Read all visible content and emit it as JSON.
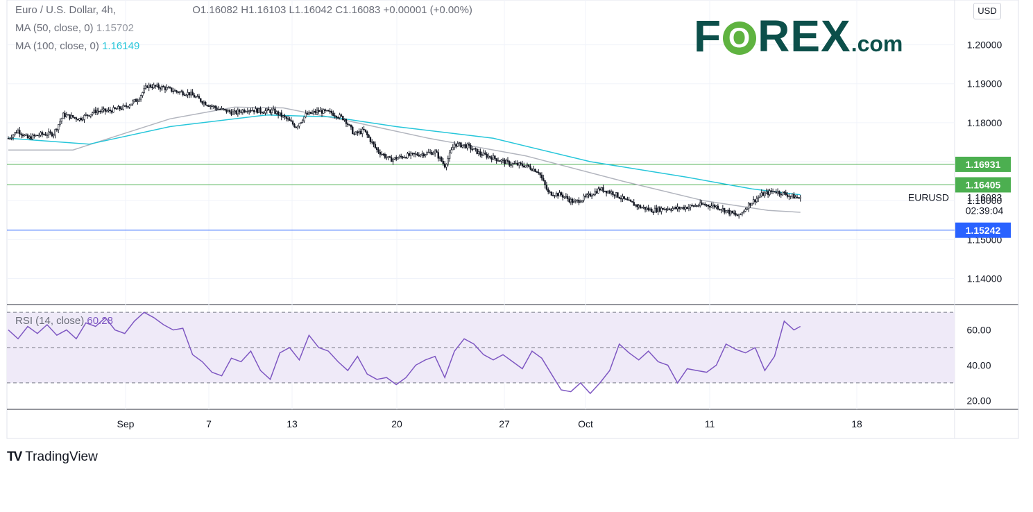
{
  "header": {
    "symbol_line": "Euro / U.S. Dollar, 4h,",
    "ohlc": "O1.16082  H1.16103  L1.16042  C1.16083  +0.00001 (+0.00%)",
    "ma50_label": "MA (50, close, 0)",
    "ma50_value": "1.15702",
    "ma100_label": "MA (100, close, 0)",
    "ma100_value": "1.16149",
    "rsi_label": "RSI (14, close)",
    "rsi_value": "60.28"
  },
  "currency_button": "USD",
  "logo": {
    "part1": "F",
    "o": "O",
    "part2": "REX",
    "suffix": ".com"
  },
  "branding": "TradingView",
  "colors": {
    "ma50": "#b2b5be",
    "ma100": "#26c6da",
    "resistance": "#4caf50",
    "support": "#2962ff",
    "rsi_line": "#7e57c2",
    "rsi_band": "#efeaf8",
    "candle": "#131722"
  },
  "chart_data": [
    {
      "type": "candlestick",
      "title": "Euro / U.S. Dollar, 4h",
      "symbol": "EURUSD",
      "price_scale": [
        "1.14000",
        "1.15000",
        "1.16000",
        "1.17000",
        "1.18000",
        "1.19000",
        "1.20000"
      ],
      "ylim": [
        1.1335,
        1.2115
      ],
      "x_tick_labels": [
        "Sep",
        "7",
        "13",
        "20",
        "27",
        "Oct",
        "11",
        "18"
      ],
      "last_price": "1.16083",
      "countdown": "02:39:04",
      "horizontal_lines": [
        {
          "label": "1.16931",
          "value": 1.16931,
          "color": "#4caf50"
        },
        {
          "label": "1.16405",
          "value": 1.16405,
          "color": "#4caf50"
        },
        {
          "label": "1.15242",
          "value": 1.15242,
          "color": "#2962ff"
        }
      ],
      "close_path": [
        [
          0,
          1.176
        ],
        [
          6,
          1.178
        ],
        [
          12,
          1.176
        ],
        [
          20,
          1.177
        ],
        [
          28,
          1.1772
        ],
        [
          34,
          1.182
        ],
        [
          44,
          1.181
        ],
        [
          54,
          1.183
        ],
        [
          62,
          1.183
        ],
        [
          72,
          1.184
        ],
        [
          80,
          1.186
        ],
        [
          86,
          1.1895
        ],
        [
          96,
          1.189
        ],
        [
          104,
          1.188
        ],
        [
          112,
          1.1875
        ],
        [
          122,
          1.185
        ],
        [
          130,
          1.1835
        ],
        [
          140,
          1.1825
        ],
        [
          148,
          1.1835
        ],
        [
          156,
          1.183
        ],
        [
          164,
          1.183
        ],
        [
          172,
          1.181
        ],
        [
          178,
          1.179
        ],
        [
          184,
          1.182
        ],
        [
          192,
          1.183
        ],
        [
          200,
          1.1825
        ],
        [
          208,
          1.181
        ],
        [
          214,
          1.177
        ],
        [
          220,
          1.178
        ],
        [
          228,
          1.173
        ],
        [
          236,
          1.1705
        ],
        [
          246,
          1.1715
        ],
        [
          256,
          1.172
        ],
        [
          264,
          1.1725
        ],
        [
          270,
          1.169
        ],
        [
          276,
          1.1745
        ],
        [
          284,
          1.174
        ],
        [
          292,
          1.172
        ],
        [
          300,
          1.171
        ],
        [
          310,
          1.1695
        ],
        [
          320,
          1.169
        ],
        [
          328,
          1.1675
        ],
        [
          334,
          1.162
        ],
        [
          342,
          1.1615
        ],
        [
          350,
          1.1595
        ],
        [
          358,
          1.161
        ],
        [
          366,
          1.163
        ],
        [
          374,
          1.162
        ],
        [
          382,
          1.16
        ],
        [
          390,
          1.1585
        ],
        [
          398,
          1.1575
        ],
        [
          406,
          1.158
        ],
        [
          414,
          1.158
        ],
        [
          422,
          1.1585
        ],
        [
          430,
          1.159
        ],
        [
          438,
          1.1585
        ],
        [
          446,
          1.157
        ],
        [
          452,
          1.156
        ],
        [
          458,
          1.159
        ],
        [
          466,
          1.1615
        ],
        [
          474,
          1.1625
        ],
        [
          482,
          1.1615
        ],
        [
          490,
          1.1605
        ]
      ],
      "ma50_path": [
        [
          0,
          1.173
        ],
        [
          40,
          1.173
        ],
        [
          70,
          1.177
        ],
        [
          100,
          1.181
        ],
        [
          140,
          1.184
        ],
        [
          170,
          1.1838
        ],
        [
          210,
          1.1805
        ],
        [
          260,
          1.176
        ],
        [
          320,
          1.1715
        ],
        [
          380,
          1.165
        ],
        [
          430,
          1.16
        ],
        [
          470,
          1.1575
        ],
        [
          490,
          1.157
        ]
      ],
      "ma100_path": [
        [
          0,
          1.176
        ],
        [
          50,
          1.1745
        ],
        [
          100,
          1.179
        ],
        [
          160,
          1.182
        ],
        [
          200,
          1.1815
        ],
        [
          240,
          1.179
        ],
        [
          300,
          1.176
        ],
        [
          360,
          1.17
        ],
        [
          420,
          1.166
        ],
        [
          460,
          1.163
        ],
        [
          490,
          1.1615
        ]
      ]
    },
    {
      "type": "line",
      "title": "RSI (14, close)",
      "y_tick_labels": [
        "20.00",
        "40.00",
        "60.00"
      ],
      "ylim": [
        15,
        74
      ],
      "bands": [
        30,
        50,
        70
      ],
      "series": [
        {
          "name": "RSI (14, close)",
          "x": [
            0,
            6,
            12,
            18,
            24,
            30,
            36,
            42,
            48,
            54,
            60,
            66,
            72,
            78,
            84,
            90,
            96,
            102,
            108,
            114,
            120,
            126,
            132,
            138,
            144,
            150,
            156,
            162,
            168,
            174,
            180,
            186,
            192,
            198,
            204,
            210,
            216,
            222,
            228,
            234,
            240,
            246,
            252,
            258,
            264,
            270,
            276,
            282,
            288,
            294,
            300,
            306,
            312,
            318,
            324,
            330,
            336,
            342,
            348,
            354,
            360,
            366,
            372,
            378,
            384,
            390,
            396,
            402,
            408,
            414,
            420,
            426,
            432,
            438,
            444,
            450,
            456,
            462,
            468,
            474,
            480,
            486,
            490
          ],
          "values": [
            60,
            55,
            62,
            58,
            63,
            57,
            60,
            55,
            64,
            62,
            67,
            60,
            58,
            65,
            70,
            67,
            63,
            60,
            61,
            46,
            42,
            36,
            34,
            44,
            42,
            48,
            37,
            32,
            47,
            50,
            43,
            57,
            50,
            48,
            42,
            37,
            45,
            35,
            32,
            33,
            29,
            33,
            40,
            43,
            45,
            33,
            48,
            55,
            52,
            46,
            43,
            46,
            42,
            38,
            48,
            44,
            35,
            26,
            25,
            30,
            24,
            30,
            37,
            52,
            47,
            43,
            48,
            42,
            40,
            30,
            38,
            37,
            36,
            40,
            52,
            49,
            47,
            50,
            37,
            45,
            65,
            60,
            62
          ]
        }
      ]
    }
  ]
}
